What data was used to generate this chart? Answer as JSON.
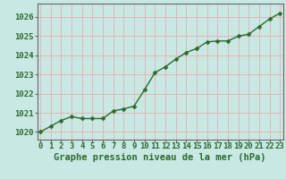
{
  "x": [
    0,
    1,
    2,
    3,
    4,
    5,
    6,
    7,
    8,
    9,
    10,
    11,
    12,
    13,
    14,
    15,
    16,
    17,
    18,
    19,
    20,
    21,
    22,
    23
  ],
  "y": [
    1020.0,
    1020.3,
    1020.6,
    1020.8,
    1020.7,
    1020.7,
    1020.7,
    1021.1,
    1021.2,
    1021.35,
    1022.2,
    1023.1,
    1023.4,
    1023.8,
    1024.15,
    1024.35,
    1024.7,
    1024.75,
    1024.75,
    1025.0,
    1025.1,
    1025.5,
    1025.9,
    1026.2
  ],
  "line_color": "#2d6a2d",
  "marker_color": "#2d6a2d",
  "bg_color": "#c8e8e4",
  "plot_bg_color": "#c8e8e4",
  "grid_color": "#e8b4b4",
  "title": "Graphe pression niveau de la mer (hPa)",
  "ylabel_ticks": [
    1020,
    1021,
    1022,
    1023,
    1024,
    1025,
    1026
  ],
  "xlim": [
    -0.3,
    23.3
  ],
  "ylim": [
    1019.6,
    1026.7
  ],
  "title_color": "#2d6a2d",
  "title_fontsize": 7.5,
  "tick_fontsize": 6.5,
  "marker_size": 2.5,
  "line_width": 1.0
}
